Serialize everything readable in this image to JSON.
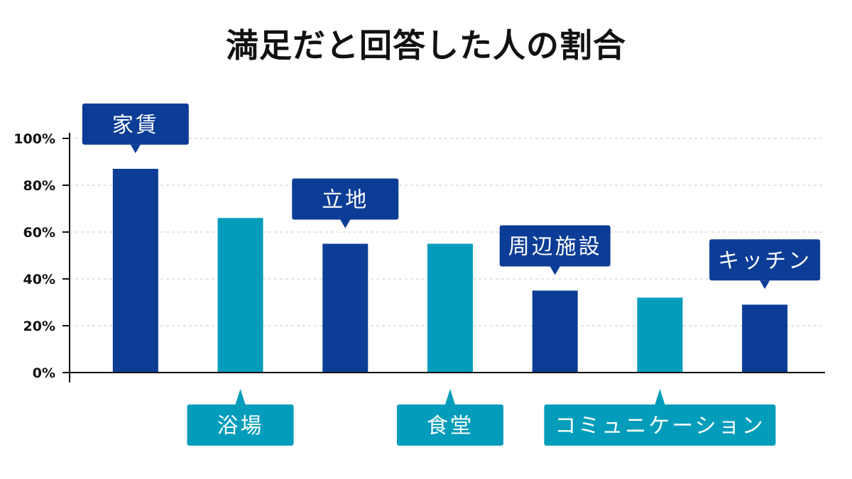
{
  "chart_data": {
    "type": "bar",
    "title": "満足だと回答した人の割合",
    "categories": [
      "家賃",
      "浴場",
      "立地",
      "食堂",
      "周辺施設",
      "コミュニケーション",
      "キッチン"
    ],
    "values": [
      87,
      66,
      55,
      55,
      35,
      32,
      29
    ],
    "ylim": [
      0,
      100
    ],
    "y_ticks": [
      "0%",
      "20%",
      "40%",
      "60%",
      "80%",
      "100%"
    ],
    "y_tick_values": [
      0,
      20,
      40,
      60,
      80,
      100
    ],
    "grid": true,
    "colors": {
      "dark": "#0c3d96",
      "light": "#039dbb",
      "axis": "#111111",
      "grid": "#c8c8c8"
    },
    "bar_colors": [
      "dark",
      "light",
      "dark",
      "light",
      "dark",
      "light",
      "dark"
    ],
    "label_positions": [
      "above",
      "below",
      "above",
      "below",
      "above",
      "below",
      "above"
    ]
  }
}
